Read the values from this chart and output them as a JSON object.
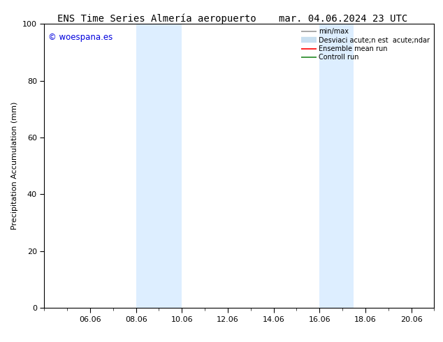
{
  "title_left": "ENS Time Series Almería aeropuerto",
  "title_right": "mar. 04.06.2024 23 UTC",
  "ylabel": "Precipitation Accumulation (mm)",
  "ylim": [
    0,
    100
  ],
  "yticks": [
    0,
    20,
    40,
    60,
    80,
    100
  ],
  "x_tick_labels": [
    "06.06",
    "08.06",
    "10.06",
    "12.06",
    "14.06",
    "16.06",
    "18.06",
    "20.06"
  ],
  "x_tick_positions": [
    2,
    4,
    6,
    8,
    10,
    12,
    14,
    16
  ],
  "xlim": [
    0,
    17
  ],
  "shaded_regions": [
    {
      "x_start": 4,
      "x_end": 6,
      "color": "#ddeeff"
    },
    {
      "x_start": 12,
      "x_end": 13.5,
      "color": "#ddeeff"
    }
  ],
  "watermark_text": "© woespana.es",
  "watermark_color": "#0000dd",
  "background_color": "#ffffff",
  "leg_labels": [
    "min/max",
    "Desviaci acute;n est  acute;ndar",
    "Ensemble mean run",
    "Controll run"
  ],
  "leg_colors": [
    "#999999",
    "#c8dff0",
    "#ff0000",
    "#228822"
  ],
  "leg_lws": [
    1.2,
    6,
    1.2,
    1.2
  ],
  "title_fontsize": 10,
  "axis_fontsize": 8,
  "tick_fontsize": 8,
  "legend_fontsize": 7
}
